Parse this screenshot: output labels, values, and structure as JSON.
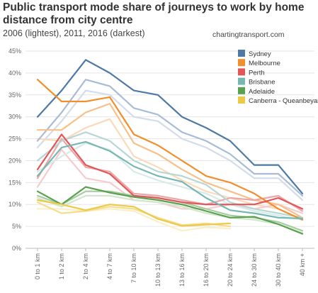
{
  "title": "Public transport mode share of journeys to work by home distance from city centre",
  "subtitle": "2006 (lightest), 2011, 2016 (darkest)",
  "credit": "chartingtransport.com",
  "chart_data": {
    "type": "line",
    "title": "Public transport mode share of journeys to work by home distance from city centre",
    "subtitle": "2006 (lightest), 2011, 2016 (darkest)",
    "categories": [
      "0 to 1 km",
      "1 to 2 km",
      "2 to 4 km",
      "4 to 7 km",
      "7 to 10 km",
      "10 to 13 km",
      "13 to 16 km",
      "16 to 20 km",
      "20 to 24 km",
      "24 to 30 km",
      "30 to 40 km",
      "40 km +"
    ],
    "ylim": [
      0,
      0.45
    ],
    "yticks": [
      "0%",
      "5%",
      "10%",
      "15%",
      "20%",
      "25%",
      "30%",
      "35%",
      "40%",
      "45%"
    ],
    "grid": true,
    "legend_position": "top-right",
    "years": [
      "2006",
      "2011",
      "2016"
    ],
    "series": [
      {
        "name": "Sydney",
        "color": "#4e79a7",
        "lighter": [
          "#d2dceb",
          "#a9bcd6"
        ],
        "values": {
          "2016": [
            0.3,
            0.36,
            0.43,
            0.4,
            0.36,
            0.35,
            0.3,
            0.275,
            0.245,
            0.19,
            0.19,
            0.125
          ],
          "2011": [
            0.245,
            0.31,
            0.385,
            0.37,
            0.32,
            0.305,
            0.265,
            0.245,
            0.215,
            0.17,
            0.17,
            0.12
          ],
          "2006": [
            0.23,
            0.29,
            0.36,
            0.35,
            0.3,
            0.29,
            0.25,
            0.23,
            0.2,
            0.16,
            0.16,
            0.11
          ]
        }
      },
      {
        "name": "Melbourne",
        "color": "#f28e2b",
        "lighter": [
          "#fbd9b9",
          "#f8c089"
        ],
        "values": {
          "2016": [
            0.385,
            0.335,
            0.335,
            0.345,
            0.26,
            0.235,
            0.2,
            0.165,
            0.15,
            0.125,
            0.09,
            0.065
          ],
          "2011": [
            0.27,
            0.27,
            0.31,
            0.33,
            0.24,
            0.215,
            0.18,
            0.15,
            0.13,
            0.11,
            0.1,
            0.07
          ],
          "2006": [
            0.25,
            0.245,
            0.275,
            0.295,
            0.21,
            0.185,
            0.155,
            0.13,
            0.115,
            0.1,
            0.09,
            0.065
          ]
        }
      },
      {
        "name": "Perth",
        "color": "#e15759",
        "lighter": [
          "#f5cccd",
          "#eda5a6"
        ],
        "values": {
          "2016": [
            0.18,
            0.26,
            0.19,
            0.17,
            0.12,
            0.115,
            0.105,
            0.1,
            0.1,
            0.1,
            0.115,
            0.09
          ],
          "2011": [
            0.16,
            0.25,
            0.185,
            0.175,
            0.125,
            0.12,
            0.11,
            0.1,
            0.115,
            0.11,
            0.12,
            0.085
          ],
          "2006": [
            0.14,
            0.225,
            0.16,
            0.15,
            0.11,
            0.105,
            0.09,
            0.09,
            0.1,
            0.09,
            0.1,
            0.08
          ]
        }
      },
      {
        "name": "Brisbane",
        "color": "#76b7b2",
        "lighter": [
          "#d7eae8",
          "#b6d8d5"
        ],
        "values": {
          "2016": [
            0.165,
            0.23,
            0.243,
            0.222,
            0.187,
            0.165,
            0.152,
            0.115,
            0.087,
            0.08,
            0.07,
            0.068
          ],
          "2011": [
            0.2,
            0.245,
            0.265,
            0.245,
            0.2,
            0.175,
            0.165,
            0.145,
            0.105,
            0.09,
            0.08,
            0.07
          ],
          "2006": [
            0.175,
            0.21,
            0.24,
            0.225,
            0.175,
            0.155,
            0.14,
            0.125,
            0.1,
            0.085,
            0.075,
            0.065
          ]
        }
      },
      {
        "name": "Adelaide",
        "color": "#59a14f",
        "lighter": [
          "#d2e6ce",
          "#a6cca0"
        ],
        "values": {
          "2016": [
            0.13,
            0.1,
            0.14,
            0.127,
            0.117,
            0.11,
            0.1,
            0.085,
            0.07,
            0.072,
            0.055,
            0.033
          ],
          "2011": [
            0.12,
            0.1,
            0.13,
            0.13,
            0.12,
            0.115,
            0.105,
            0.09,
            0.075,
            0.07,
            0.06,
            0.04
          ],
          "2006": [
            0.115,
            0.095,
            0.12,
            0.12,
            0.11,
            0.105,
            0.095,
            0.08,
            0.07,
            0.065,
            0.055,
            0.035
          ]
        }
      },
      {
        "name": "Canberra - Queanbeyan",
        "color": "#edc948",
        "lighter": [
          "#faefc6",
          "#f4dd8f"
        ],
        "values": {
          "2016": [
            0.11,
            0.1,
            0.087,
            0.1,
            0.095,
            0.067,
            0.051,
            0.054,
            0.057,
            null,
            null,
            null
          ],
          "2011": [
            0.105,
            0.08,
            0.085,
            0.095,
            0.09,
            0.07,
            0.053,
            0.057,
            0.05,
            null,
            null,
            null
          ],
          "2006": [
            0.09,
            0.09,
            0.085,
            0.09,
            0.085,
            0.06,
            0.04,
            0.048,
            0.045,
            null,
            null,
            null
          ]
        }
      }
    ]
  }
}
